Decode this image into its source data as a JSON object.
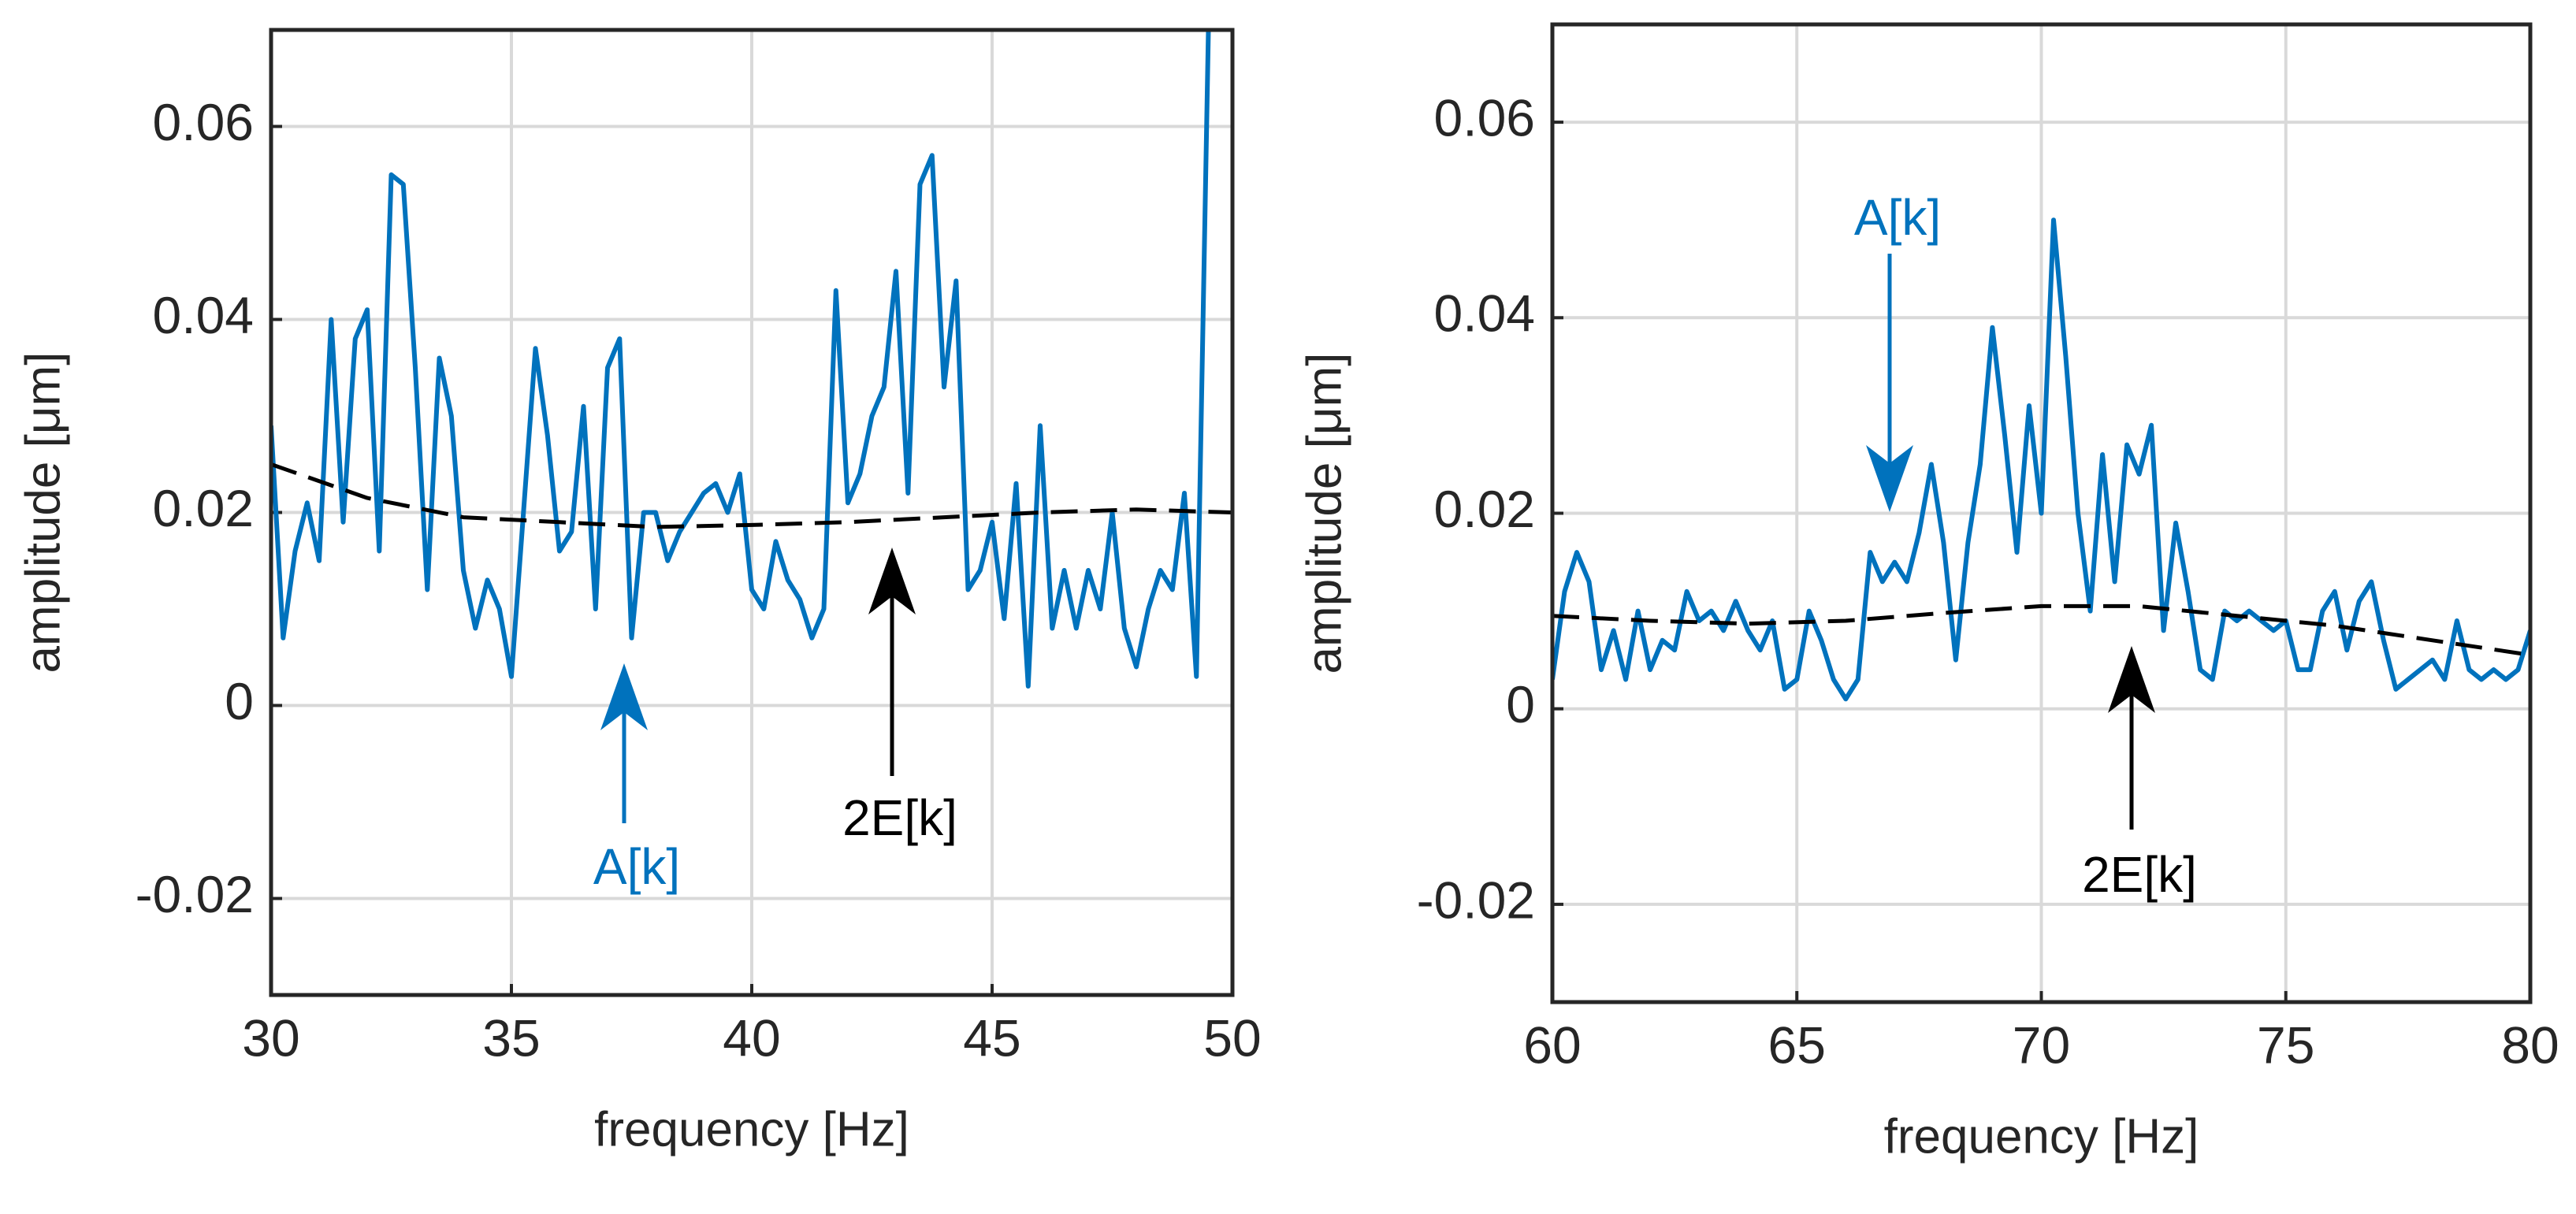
{
  "chart_data": [
    {
      "type": "line",
      "xlabel": "frequency [Hz]",
      "ylabel": "amplitude [μm]",
      "xlim": [
        30,
        50
      ],
      "ylim": [
        -0.03,
        0.07
      ],
      "xticks": [
        30,
        35,
        40,
        45,
        50
      ],
      "yticks": [
        -0.02,
        0,
        0.02,
        0.04,
        0.06
      ],
      "grid": true,
      "series": [
        {
          "name": "A[k]",
          "color": "#0072bd",
          "dashed": false,
          "x": [
            30,
            30.25,
            30.5,
            30.75,
            31,
            31.25,
            31.5,
            31.75,
            32,
            32.25,
            32.5,
            32.75,
            33,
            33.25,
            33.5,
            33.75,
            34,
            34.25,
            34.5,
            34.75,
            35,
            35.25,
            35.5,
            35.75,
            36,
            36.25,
            36.5,
            36.75,
            37,
            37.25,
            37.5,
            37.75,
            38,
            38.25,
            38.5,
            38.75,
            39,
            39.25,
            39.5,
            39.75,
            40,
            40.25,
            40.5,
            40.75,
            41,
            41.25,
            41.5,
            41.75,
            42,
            42.25,
            42.5,
            42.75,
            43,
            43.25,
            43.5,
            43.75,
            44,
            44.25,
            44.5,
            44.75,
            45,
            45.25,
            45.5,
            45.75,
            46,
            46.25,
            46.5,
            46.75,
            47,
            47.25,
            47.5,
            47.75,
            48,
            48.25,
            48.5,
            48.75,
            49,
            49.25,
            49.5
          ],
          "values": [
            0.029,
            0.007,
            0.016,
            0.021,
            0.015,
            0.04,
            0.019,
            0.038,
            0.041,
            0.016,
            0.055,
            0.054,
            0.035,
            0.012,
            0.036,
            0.03,
            0.014,
            0.008,
            0.013,
            0.01,
            0.003,
            0.02,
            0.037,
            0.028,
            0.016,
            0.018,
            0.031,
            0.01,
            0.035,
            0.038,
            0.007,
            0.02,
            0.02,
            0.015,
            0.018,
            0.02,
            0.022,
            0.023,
            0.02,
            0.024,
            0.012,
            0.01,
            0.017,
            0.013,
            0.011,
            0.007,
            0.01,
            0.043,
            0.021,
            0.024,
            0.03,
            0.033,
            0.045,
            0.022,
            0.054,
            0.057,
            0.033,
            0.044,
            0.012,
            0.014,
            0.019,
            0.009,
            0.023,
            0.002,
            0.029,
            0.008,
            0.014,
            0.008,
            0.014,
            0.01,
            0.02,
            0.008,
            0.004,
            0.01,
            0.014,
            0.012,
            0.022,
            0.003,
            0.07
          ]
        },
        {
          "name": "2E[k]",
          "color": "#000000",
          "dashed": true,
          "x": [
            30,
            32,
            34,
            36,
            38,
            40,
            42,
            44,
            46,
            48,
            50
          ],
          "values": [
            0.025,
            0.0215,
            0.0195,
            0.019,
            0.0185,
            0.0187,
            0.019,
            0.0195,
            0.02,
            0.0203,
            0.02
          ]
        }
      ]
    },
    {
      "type": "line",
      "xlabel": "frequency [Hz]",
      "ylabel": "amplitude [μm]",
      "xlim": [
        60,
        80
      ],
      "ylim": [
        -0.03,
        0.07
      ],
      "xticks": [
        60,
        65,
        70,
        75,
        80
      ],
      "yticks": [
        -0.02,
        0,
        0.02,
        0.04,
        0.06
      ],
      "grid": true,
      "series": [
        {
          "name": "A[k]",
          "color": "#0072bd",
          "dashed": false,
          "x": [
            60,
            60.25,
            60.5,
            60.75,
            61,
            61.25,
            61.5,
            61.75,
            62,
            62.25,
            62.5,
            62.75,
            63,
            63.25,
            63.5,
            63.75,
            64,
            64.25,
            64.5,
            64.75,
            65,
            65.25,
            65.5,
            65.75,
            66,
            66.25,
            66.5,
            66.75,
            67,
            67.25,
            67.5,
            67.75,
            68,
            68.25,
            68.5,
            68.75,
            69,
            69.25,
            69.5,
            69.75,
            70,
            70.25,
            70.5,
            70.75,
            71,
            71.25,
            71.5,
            71.75,
            72,
            72.25,
            72.5,
            72.75,
            73,
            73.25,
            73.5,
            73.75,
            74,
            74.25,
            74.5,
            74.75,
            75,
            75.25,
            75.5,
            75.75,
            76,
            76.25,
            76.5,
            76.75,
            77,
            77.25,
            77.5,
            77.75,
            78,
            78.25,
            78.5,
            78.75,
            79,
            79.25,
            79.5,
            79.75,
            80
          ],
          "values": [
            0.003,
            0.012,
            0.016,
            0.013,
            0.004,
            0.008,
            0.003,
            0.01,
            0.004,
            0.007,
            0.006,
            0.012,
            0.009,
            0.01,
            0.008,
            0.011,
            0.008,
            0.006,
            0.009,
            0.002,
            0.003,
            0.01,
            0.007,
            0.003,
            0.001,
            0.003,
            0.016,
            0.013,
            0.015,
            0.013,
            0.018,
            0.025,
            0.017,
            0.005,
            0.017,
            0.025,
            0.039,
            0.028,
            0.016,
            0.031,
            0.02,
            0.05,
            0.036,
            0.02,
            0.01,
            0.026,
            0.013,
            0.027,
            0.024,
            0.029,
            0.008,
            0.019,
            0.012,
            0.004,
            0.003,
            0.01,
            0.009,
            0.01,
            0.009,
            0.008,
            0.009,
            0.004,
            0.004,
            0.01,
            0.012,
            0.006,
            0.011,
            0.013,
            0.007,
            0.002,
            0.003,
            0.004,
            0.005,
            0.003,
            0.009,
            0.004,
            0.003,
            0.004,
            0.003,
            0.004,
            0.008
          ]
        },
        {
          "name": "2E[k]",
          "color": "#000000",
          "dashed": true,
          "x": [
            60,
            62,
            64,
            66,
            68,
            70,
            72,
            74,
            76,
            78,
            80
          ],
          "values": [
            0.0095,
            0.009,
            0.0087,
            0.009,
            0.0098,
            0.0105,
            0.0105,
            0.0095,
            0.0085,
            0.007,
            0.0055
          ]
        }
      ]
    }
  ]
}
